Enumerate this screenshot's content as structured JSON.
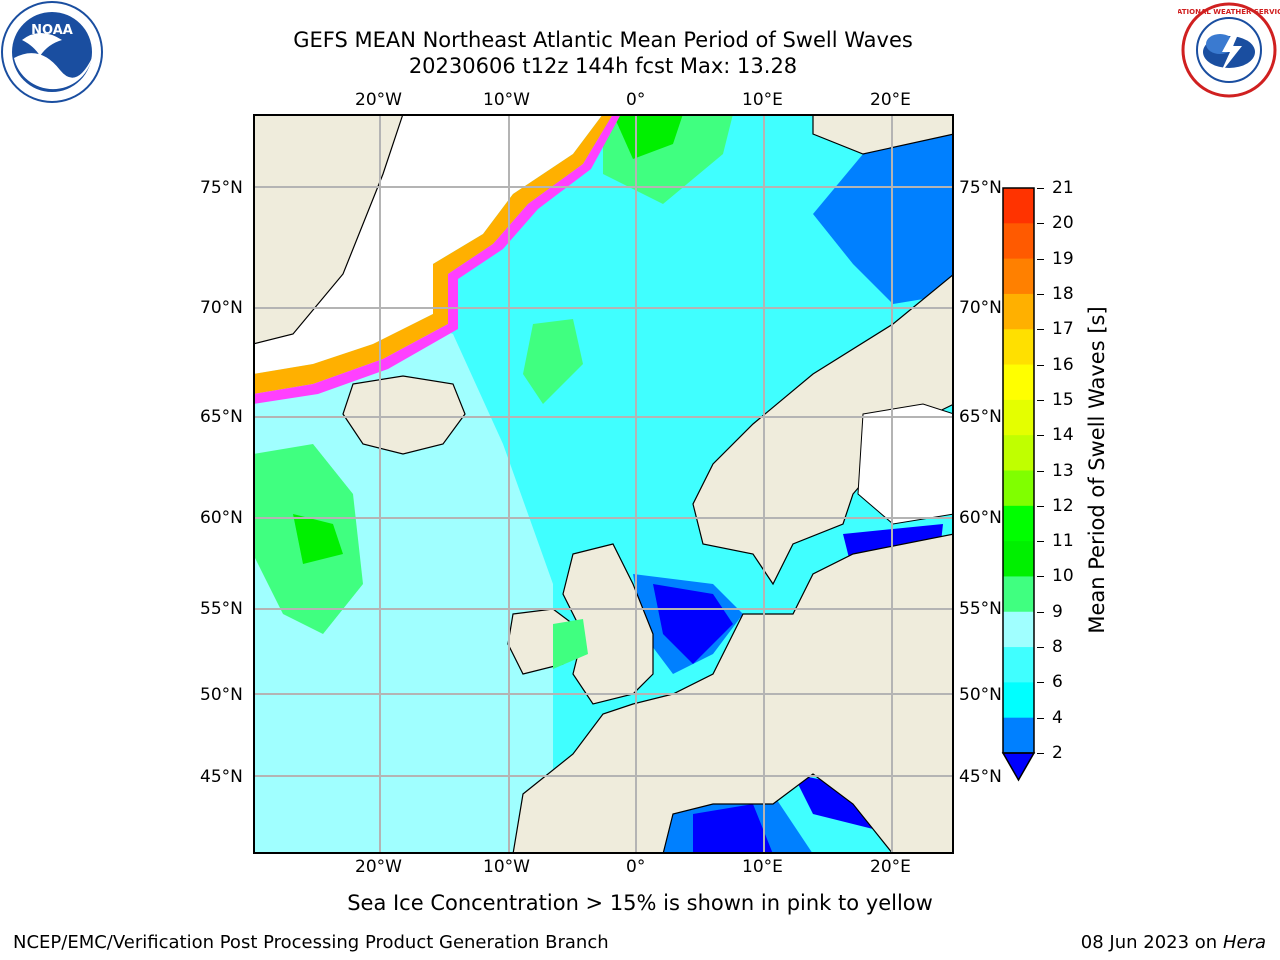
{
  "title": {
    "line1": "GEFS MEAN Northeast Atlantic Mean Period of Swell Waves",
    "line2": "20230606 t12z 144h fcst   Max: 13.28"
  },
  "logos": {
    "left": {
      "text": "NOAA",
      "icon": "noaa-logo-icon"
    },
    "right": {
      "text": "NATIONAL WEATHER SERVICE",
      "icon": "nws-logo-icon"
    }
  },
  "map": {
    "lon_labels": [
      "20°W",
      "10°W",
      "0°",
      "10°E",
      "20°E"
    ],
    "lat_labels": [
      "75°N",
      "70°N",
      "65°N",
      "60°N",
      "55°N",
      "50°N",
      "45°N"
    ],
    "colors": {
      "land": "#efecdc",
      "ice_white": "#ffffff",
      "grid": "#b4b4b4",
      "coast": "#000000"
    }
  },
  "colorbar": {
    "label": "Mean Period of Swell Waves [s]",
    "ticks": [
      "21",
      "20",
      "19",
      "18",
      "17",
      "16",
      "15",
      "14",
      "13",
      "12",
      "11",
      "10",
      "9",
      "8",
      "6",
      "4",
      "2"
    ],
    "colors": [
      "#ff0000",
      "#ff3300",
      "#ff5a00",
      "#ff8000",
      "#ffb000",
      "#ffe000",
      "#ffff00",
      "#e4ff00",
      "#c0ff00",
      "#80ff00",
      "#00ff00",
      "#00f000",
      "#40ff80",
      "#a0ffff",
      "#40ffff",
      "#00ffff",
      "#0080ff",
      "#0000ff"
    ]
  },
  "note": "Sea Ice Concentration > 15% is shown in pink to yellow",
  "footer": {
    "left": "NCEP/EMC/Verification Post Processing Product Generation Branch",
    "date": "08 Jun 2023 on",
    "host": "Hera"
  }
}
